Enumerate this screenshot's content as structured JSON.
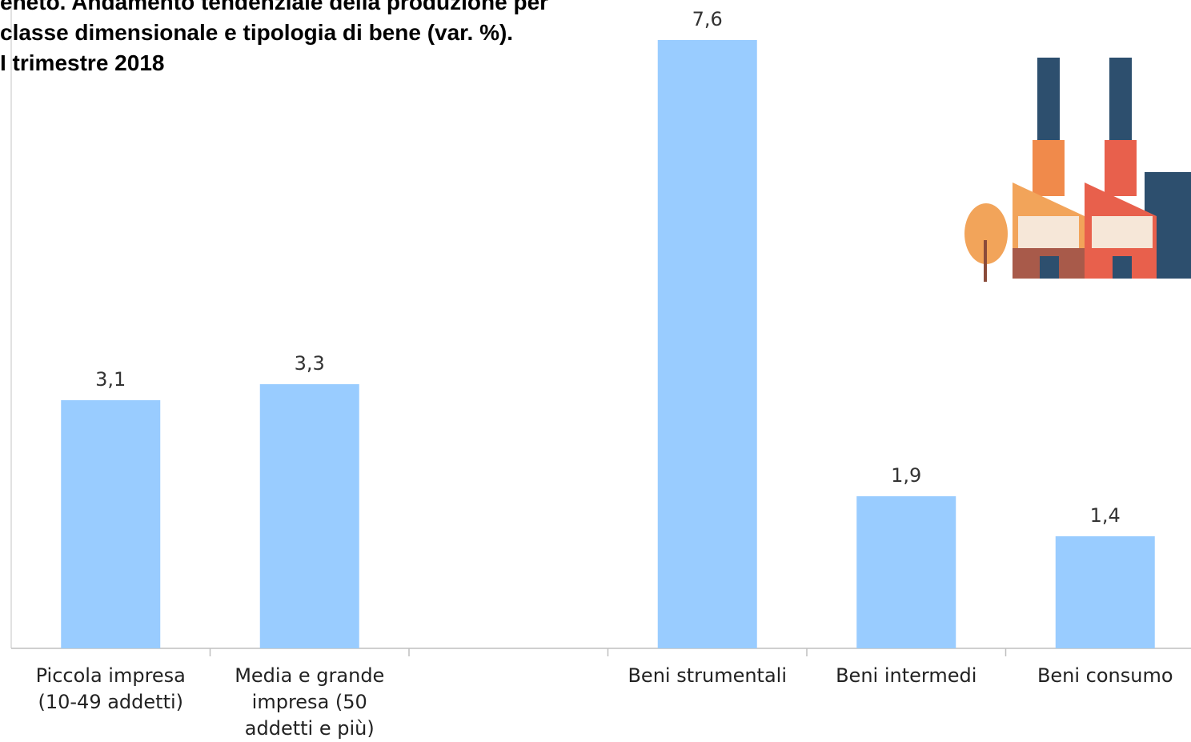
{
  "chart_data": {
    "type": "bar",
    "title_lines": [
      "eneto. Andamento tendenziale della produzione per",
      "classe dimensionale e tipologia di bene (var. %).",
      "I trimestre 2018"
    ],
    "categories": [
      "Piccola impresa (10-49 addetti)",
      "Media e grande impresa (50 addetti e più)",
      null,
      "Beni strumentali",
      "Beni intermedi",
      "Beni consumo"
    ],
    "values": [
      3.1,
      3.3,
      null,
      7.6,
      1.9,
      1.4
    ],
    "value_labels": [
      "3,1",
      "3,3",
      null,
      "7,6",
      "1,9",
      "1,4"
    ],
    "color": "#99ccff",
    "ylim": [
      0,
      8.1
    ]
  }
}
